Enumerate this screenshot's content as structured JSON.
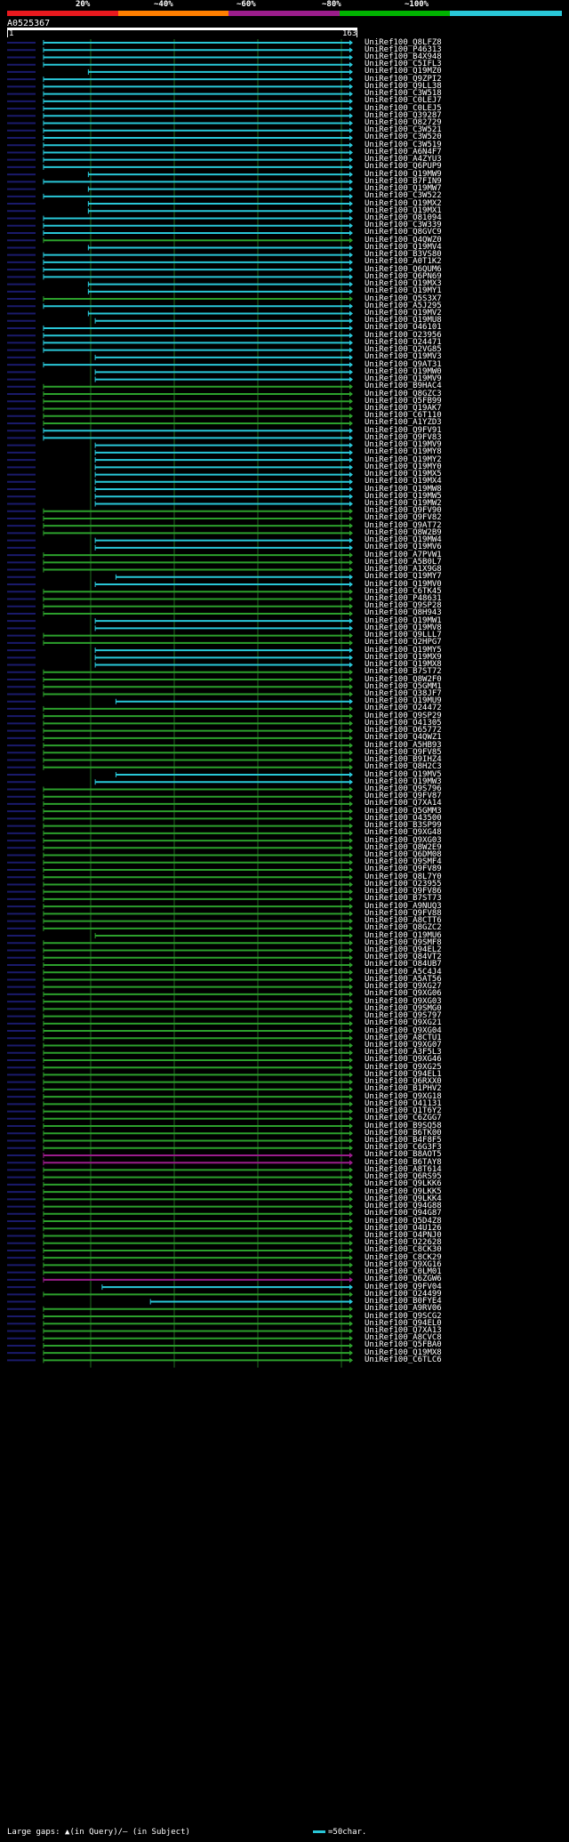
{
  "legend": {
    "ticks": [
      "20%",
      "~40%",
      "~60%",
      "~80%",
      "~100%"
    ],
    "colors": [
      "#e8191e",
      "#ff7f00",
      "#9b1d8c",
      "#00b300",
      "#29c7d8"
    ]
  },
  "query": {
    "name": "A0525367",
    "start": "1",
    "end": "163"
  },
  "colors": {
    "high": "#29c7d8",
    "mid": "#2ca02c",
    "low": "#9b1d8c",
    "grid": "#1f6b1f",
    "gap": "#1a1a6b"
  },
  "hits": [
    {
      "label": "UniRef100_Q8LFZ8",
      "c": "h",
      "s": 0.09
    },
    {
      "label": "UniRef100_P46313",
      "c": "h",
      "s": 0.09
    },
    {
      "label": "UniRef100_B4X948",
      "c": "h",
      "s": 0.09
    },
    {
      "label": "UniRef100_C5IFL3",
      "c": "h",
      "s": 0.09
    },
    {
      "label": "UniRef100_Q19MZ0",
      "c": "h",
      "s": 0.22
    },
    {
      "label": "UniRef100_Q9ZPI2",
      "c": "h",
      "s": 0.09
    },
    {
      "label": "UniRef100_Q9LL38",
      "c": "h",
      "s": 0.09
    },
    {
      "label": "UniRef100_C3W518",
      "c": "h",
      "s": 0.09
    },
    {
      "label": "UniRef100_C0LEJ7",
      "c": "h",
      "s": 0.09
    },
    {
      "label": "UniRef100_C0LEJ5",
      "c": "h",
      "s": 0.09
    },
    {
      "label": "UniRef100_Q39287",
      "c": "h",
      "s": 0.09
    },
    {
      "label": "UniRef100_O82729",
      "c": "h",
      "s": 0.09
    },
    {
      "label": "UniRef100_C3W521",
      "c": "h",
      "s": 0.09
    },
    {
      "label": "UniRef100_C3W520",
      "c": "h",
      "s": 0.09
    },
    {
      "label": "UniRef100_C3W519",
      "c": "h",
      "s": 0.09
    },
    {
      "label": "UniRef100_A6N4F7",
      "c": "h",
      "s": 0.09
    },
    {
      "label": "UniRef100_A4ZYU3",
      "c": "h",
      "s": 0.09
    },
    {
      "label": "UniRef100_Q6PUP9",
      "c": "h",
      "s": 0.09
    },
    {
      "label": "UniRef100_Q19MW9",
      "c": "h",
      "s": 0.22
    },
    {
      "label": "UniRef100_B7FIN9",
      "c": "h",
      "s": 0.09
    },
    {
      "label": "UniRef100_Q19MW7",
      "c": "h",
      "s": 0.22
    },
    {
      "label": "UniRef100_C3W522",
      "c": "h",
      "s": 0.09
    },
    {
      "label": "UniRef100_Q19MX2",
      "c": "h",
      "s": 0.22
    },
    {
      "label": "UniRef100_Q19MX1",
      "c": "h",
      "s": 0.22
    },
    {
      "label": "UniRef100_O81094",
      "c": "h",
      "s": 0.09
    },
    {
      "label": "UniRef100_C3W339",
      "c": "h",
      "s": 0.09
    },
    {
      "label": "UniRef100_Q8GVC9",
      "c": "h",
      "s": 0.09
    },
    {
      "label": "UniRef100_Q4QWZ0",
      "c": "m",
      "s": 0.09
    },
    {
      "label": "UniRef100_Q19MV4",
      "c": "h",
      "s": 0.22
    },
    {
      "label": "UniRef100_B3VS80",
      "c": "h",
      "s": 0.09
    },
    {
      "label": "UniRef100_A0T1K2",
      "c": "h",
      "s": 0.09
    },
    {
      "label": "UniRef100_Q6QUM6",
      "c": "h",
      "s": 0.09
    },
    {
      "label": "UniRef100_Q6PN69",
      "c": "h",
      "s": 0.09
    },
    {
      "label": "UniRef100_Q19MX3",
      "c": "h",
      "s": 0.22
    },
    {
      "label": "UniRef100_Q19MY1",
      "c": "h",
      "s": 0.22
    },
    {
      "label": "UniRef100_Q5S3X7",
      "c": "m",
      "s": 0.09
    },
    {
      "label": "UniRef100_A5J295",
      "c": "h",
      "s": 0.09
    },
    {
      "label": "UniRef100_Q19MV2",
      "c": "h",
      "s": 0.22
    },
    {
      "label": "UniRef100_Q19MU8",
      "c": "h",
      "s": 0.24
    },
    {
      "label": "UniRef100_O46101",
      "c": "h",
      "s": 0.09
    },
    {
      "label": "UniRef100_O23956",
      "c": "h",
      "s": 0.09
    },
    {
      "label": "UniRef100_O24471",
      "c": "h",
      "s": 0.09
    },
    {
      "label": "UniRef100_Q2VG85",
      "c": "h",
      "s": 0.09
    },
    {
      "label": "UniRef100_Q19MV3",
      "c": "h",
      "s": 0.24
    },
    {
      "label": "UniRef100_Q9AT31",
      "c": "h",
      "s": 0.09
    },
    {
      "label": "UniRef100_Q19MW0",
      "c": "h",
      "s": 0.24
    },
    {
      "label": "UniRef100_Q19MV9",
      "c": "h",
      "s": 0.24
    },
    {
      "label": "UniRef100_B9HAC4",
      "c": "m",
      "s": 0.09
    },
    {
      "label": "UniRef100_Q8GZC3",
      "c": "m",
      "s": 0.09
    },
    {
      "label": "UniRef100_Q5FB99",
      "c": "m",
      "s": 0.09
    },
    {
      "label": "UniRef100_Q19AK7",
      "c": "m",
      "s": 0.09
    },
    {
      "label": "UniRef100_C6T110",
      "c": "m",
      "s": 0.09
    },
    {
      "label": "UniRef100_A1YZD3",
      "c": "m",
      "s": 0.09
    },
    {
      "label": "UniRef100_Q9FV91",
      "c": "h",
      "s": 0.09
    },
    {
      "label": "UniRef100_Q9FV83",
      "c": "h",
      "s": 0.09
    },
    {
      "label": "UniRef100_Q19MV9",
      "c": "h",
      "s": 0.24
    },
    {
      "label": "UniRef100_Q19MY8",
      "c": "h",
      "s": 0.24
    },
    {
      "label": "UniRef100_Q19MY2",
      "c": "h",
      "s": 0.24
    },
    {
      "label": "UniRef100_Q19MY0",
      "c": "h",
      "s": 0.24
    },
    {
      "label": "UniRef100_Q19MX5",
      "c": "h",
      "s": 0.24
    },
    {
      "label": "UniRef100_Q19MX4",
      "c": "h",
      "s": 0.24
    },
    {
      "label": "UniRef100_Q19MW8",
      "c": "h",
      "s": 0.24
    },
    {
      "label": "UniRef100_Q19MW5",
      "c": "h",
      "s": 0.24
    },
    {
      "label": "UniRef100_Q19MW2",
      "c": "h",
      "s": 0.24
    },
    {
      "label": "UniRef100_Q9FV90",
      "c": "m",
      "s": 0.09
    },
    {
      "label": "UniRef100_Q9FV82",
      "c": "m",
      "s": 0.09
    },
    {
      "label": "UniRef100_Q9AT72",
      "c": "m",
      "s": 0.09
    },
    {
      "label": "UniRef100_Q8W2B9",
      "c": "m",
      "s": 0.09
    },
    {
      "label": "UniRef100_Q19MW4",
      "c": "h",
      "s": 0.24
    },
    {
      "label": "UniRef100_Q19MV6",
      "c": "h",
      "s": 0.24
    },
    {
      "label": "UniRef100_A7PVW1",
      "c": "m",
      "s": 0.09
    },
    {
      "label": "UniRef100_A5B0L7",
      "c": "m",
      "s": 0.09
    },
    {
      "label": "UniRef100_A1X9G8",
      "c": "m",
      "s": 0.09
    },
    {
      "label": "UniRef100_Q19MY7",
      "c": "h",
      "s": 0.3
    },
    {
      "label": "UniRef100_Q19MV0",
      "c": "h",
      "s": 0.24
    },
    {
      "label": "UniRef100_C6TK45",
      "c": "m",
      "s": 0.09
    },
    {
      "label": "UniRef100_P48631",
      "c": "m",
      "s": 0.09
    },
    {
      "label": "UniRef100_Q9SP28",
      "c": "m",
      "s": 0.09
    },
    {
      "label": "UniRef100_Q8H943",
      "c": "m",
      "s": 0.09
    },
    {
      "label": "UniRef100_Q19MW1",
      "c": "h",
      "s": 0.24
    },
    {
      "label": "UniRef100_Q19MV8",
      "c": "h",
      "s": 0.24
    },
    {
      "label": "UniRef100_Q9LLL7",
      "c": "m",
      "s": 0.09
    },
    {
      "label": "UniRef100_Q2HPG7",
      "c": "m",
      "s": 0.09
    },
    {
      "label": "UniRef100_Q19MY5",
      "c": "h",
      "s": 0.24
    },
    {
      "label": "UniRef100_Q19MX9",
      "c": "h",
      "s": 0.24
    },
    {
      "label": "UniRef100_Q19MX8",
      "c": "h",
      "s": 0.24
    },
    {
      "label": "UniRef100_B7ST72",
      "c": "m",
      "s": 0.09
    },
    {
      "label": "UniRef100_Q8W2F0",
      "c": "m",
      "s": 0.09
    },
    {
      "label": "UniRef100_Q5GMM1",
      "c": "m",
      "s": 0.09
    },
    {
      "label": "UniRef100_Q38JF7",
      "c": "m",
      "s": 0.09
    },
    {
      "label": "UniRef100_Q19MU9",
      "c": "h",
      "s": 0.3
    },
    {
      "label": "UniRef100_O24472",
      "c": "m",
      "s": 0.09
    },
    {
      "label": "UniRef100_Q9SP29",
      "c": "m",
      "s": 0.09
    },
    {
      "label": "UniRef100_O41305",
      "c": "m",
      "s": 0.09
    },
    {
      "label": "UniRef100_O65772",
      "c": "m",
      "s": 0.09
    },
    {
      "label": "UniRef100_Q4QWZ1",
      "c": "m",
      "s": 0.09
    },
    {
      "label": "UniRef100_A5HB93",
      "c": "m",
      "s": 0.09
    },
    {
      "label": "UniRef100_Q9FV85",
      "c": "m",
      "s": 0.09
    },
    {
      "label": "UniRef100_B9IHZ4",
      "c": "m",
      "s": 0.09
    },
    {
      "label": "UniRef100_Q8H2C3",
      "c": "m",
      "s": 0.09
    },
    {
      "label": "UniRef100_Q19MV5",
      "c": "h",
      "s": 0.3
    },
    {
      "label": "UniRef100_Q19MW3",
      "c": "h",
      "s": 0.24
    },
    {
      "label": "UniRef100_Q9S796",
      "c": "m",
      "s": 0.09
    },
    {
      "label": "UniRef100_Q9FV87",
      "c": "m",
      "s": 0.09
    },
    {
      "label": "UniRef100_Q7XA14",
      "c": "m",
      "s": 0.09
    },
    {
      "label": "UniRef100_Q5GMM3",
      "c": "m",
      "s": 0.09
    },
    {
      "label": "UniRef100_O43500",
      "c": "m",
      "s": 0.09
    },
    {
      "label": "UniRef100_B3SP99",
      "c": "m",
      "s": 0.09
    },
    {
      "label": "UniRef100_Q9XG48",
      "c": "m",
      "s": 0.09
    },
    {
      "label": "UniRef100_Q9XG03",
      "c": "m",
      "s": 0.09
    },
    {
      "label": "UniRef100_Q8W2E9",
      "c": "m",
      "s": 0.09
    },
    {
      "label": "UniRef100_Q6DM08",
      "c": "m",
      "s": 0.09
    },
    {
      "label": "UniRef100_Q9SMF4",
      "c": "m",
      "s": 0.09
    },
    {
      "label": "UniRef100_Q9FV89",
      "c": "m",
      "s": 0.09
    },
    {
      "label": "UniRef100_Q8L7Y0",
      "c": "m",
      "s": 0.09
    },
    {
      "label": "UniRef100_O23955",
      "c": "m",
      "s": 0.09
    },
    {
      "label": "UniRef100_Q9FV86",
      "c": "m",
      "s": 0.09
    },
    {
      "label": "UniRef100_B7ST73",
      "c": "m",
      "s": 0.09
    },
    {
      "label": "UniRef100_A9NUQ3",
      "c": "m",
      "s": 0.09
    },
    {
      "label": "UniRef100_Q9FV88",
      "c": "m",
      "s": 0.09
    },
    {
      "label": "UniRef100_A8CTT6",
      "c": "m",
      "s": 0.09
    },
    {
      "label": "UniRef100_Q8GZC2",
      "c": "m",
      "s": 0.09
    },
    {
      "label": "UniRef100_Q19MU6",
      "c": "m",
      "s": 0.24
    },
    {
      "label": "UniRef100_Q9SMF8",
      "c": "m",
      "s": 0.09
    },
    {
      "label": "UniRef100_Q94EL2",
      "c": "m",
      "s": 0.09
    },
    {
      "label": "UniRef100_Q84VT2",
      "c": "m",
      "s": 0.09
    },
    {
      "label": "UniRef100_O84UB7",
      "c": "m",
      "s": 0.09
    },
    {
      "label": "UniRef100_A5C4J4",
      "c": "m",
      "s": 0.09
    },
    {
      "label": "UniRef100_A5AT56",
      "c": "m",
      "s": 0.09
    },
    {
      "label": "UniRef100_Q9XG27",
      "c": "m",
      "s": 0.09
    },
    {
      "label": "UniRef100_Q9XG06",
      "c": "m",
      "s": 0.09
    },
    {
      "label": "UniRef100_Q9XG03",
      "c": "m",
      "s": 0.09
    },
    {
      "label": "UniRef100_Q9SMG0",
      "c": "m",
      "s": 0.09
    },
    {
      "label": "UniRef100_Q9S797",
      "c": "m",
      "s": 0.09
    },
    {
      "label": "UniRef100_Q9XG21",
      "c": "m",
      "s": 0.09
    },
    {
      "label": "UniRef100_Q9XG04",
      "c": "m",
      "s": 0.09
    },
    {
      "label": "UniRef100_A8CTU1",
      "c": "m",
      "s": 0.09
    },
    {
      "label": "UniRef100_Q9XG07",
      "c": "m",
      "s": 0.09
    },
    {
      "label": "UniRef100_A3F5L3",
      "c": "m",
      "s": 0.09
    },
    {
      "label": "UniRef100_Q9XG46",
      "c": "m",
      "s": 0.09
    },
    {
      "label": "UniRef100_Q9XG25",
      "c": "m",
      "s": 0.09
    },
    {
      "label": "UniRef100_Q94EL1",
      "c": "m",
      "s": 0.09
    },
    {
      "label": "UniRef100_Q6RXX0",
      "c": "m",
      "s": 0.09
    },
    {
      "label": "UniRef100_B1PHV2",
      "c": "m",
      "s": 0.09
    },
    {
      "label": "UniRef100_Q9XG18",
      "c": "m",
      "s": 0.09
    },
    {
      "label": "UniRef100_O41131",
      "c": "m",
      "s": 0.09
    },
    {
      "label": "UniRef100_Q1T6Y2",
      "c": "m",
      "s": 0.09
    },
    {
      "label": "UniRef100_C6ZGG7",
      "c": "m",
      "s": 0.09
    },
    {
      "label": "UniRef100_B9SQ58",
      "c": "m",
      "s": 0.09
    },
    {
      "label": "UniRef100_B6TK00",
      "c": "m",
      "s": 0.09
    },
    {
      "label": "UniRef100_B4F8F5",
      "c": "m",
      "s": 0.09
    },
    {
      "label": "UniRef100_C6G3F3",
      "c": "m",
      "s": 0.09
    },
    {
      "label": "UniRef100_B8AOT5",
      "c": "l",
      "s": 0.09
    },
    {
      "label": "UniRef100_B6TAY8",
      "c": "l",
      "s": 0.09
    },
    {
      "label": "UniRef100_A8T614",
      "c": "m",
      "s": 0.09
    },
    {
      "label": "UniRef100_Q6RS95",
      "c": "m",
      "s": 0.09
    },
    {
      "label": "UniRef100_Q9LKK6",
      "c": "m",
      "s": 0.09
    },
    {
      "label": "UniRef100_Q9LKK5",
      "c": "m",
      "s": 0.09
    },
    {
      "label": "UniRef100_Q9LKK4",
      "c": "m",
      "s": 0.09
    },
    {
      "label": "UniRef100_Q94G88",
      "c": "m",
      "s": 0.09
    },
    {
      "label": "UniRef100_Q94G87",
      "c": "m",
      "s": 0.09
    },
    {
      "label": "UniRef100_Q5D4Z8",
      "c": "m",
      "s": 0.09
    },
    {
      "label": "UniRef100_O4U126",
      "c": "m",
      "s": 0.09
    },
    {
      "label": "UniRef100_O4PNJ0",
      "c": "m",
      "s": 0.09
    },
    {
      "label": "UniRef100_O22628",
      "c": "m",
      "s": 0.09
    },
    {
      "label": "UniRef100_C8CK30",
      "c": "m",
      "s": 0.09
    },
    {
      "label": "UniRef100_C8CK29",
      "c": "m",
      "s": 0.09
    },
    {
      "label": "UniRef100_Q9XG16",
      "c": "m",
      "s": 0.09
    },
    {
      "label": "UniRef100_C0LM01",
      "c": "m",
      "s": 0.09
    },
    {
      "label": "UniRef100_Q6ZGW6",
      "c": "l",
      "s": 0.09
    },
    {
      "label": "UniRef100_Q9FV04",
      "c": "h",
      "s": 0.26
    },
    {
      "label": "UniRef100_O24499",
      "c": "m",
      "s": 0.09
    },
    {
      "label": "UniRef100_B0FYE4",
      "c": "h",
      "s": 0.4
    },
    {
      "label": "UniRef100_A9RV06",
      "c": "m",
      "s": 0.09
    },
    {
      "label": "UniRef100_Q9SCG2",
      "c": "m",
      "s": 0.09
    },
    {
      "label": "UniRef100_Q94EL0",
      "c": "m",
      "s": 0.09
    },
    {
      "label": "UniRef100_Q7XA13",
      "c": "m",
      "s": 0.09
    },
    {
      "label": "UniRef100_A8CVC8",
      "c": "m",
      "s": 0.09
    },
    {
      "label": "UniRef100_Q5FBA0",
      "c": "m",
      "s": 0.09
    },
    {
      "label": "UniRef100_Q19MX8",
      "c": "m",
      "s": 0.09
    },
    {
      "label": "UniRef100_C6TLC6",
      "c": "m",
      "s": 0.09
    }
  ],
  "footer": {
    "gaps_text": "Large gaps: ▲(in Query)/— (in Subject)",
    "scale_text": "=50char."
  }
}
